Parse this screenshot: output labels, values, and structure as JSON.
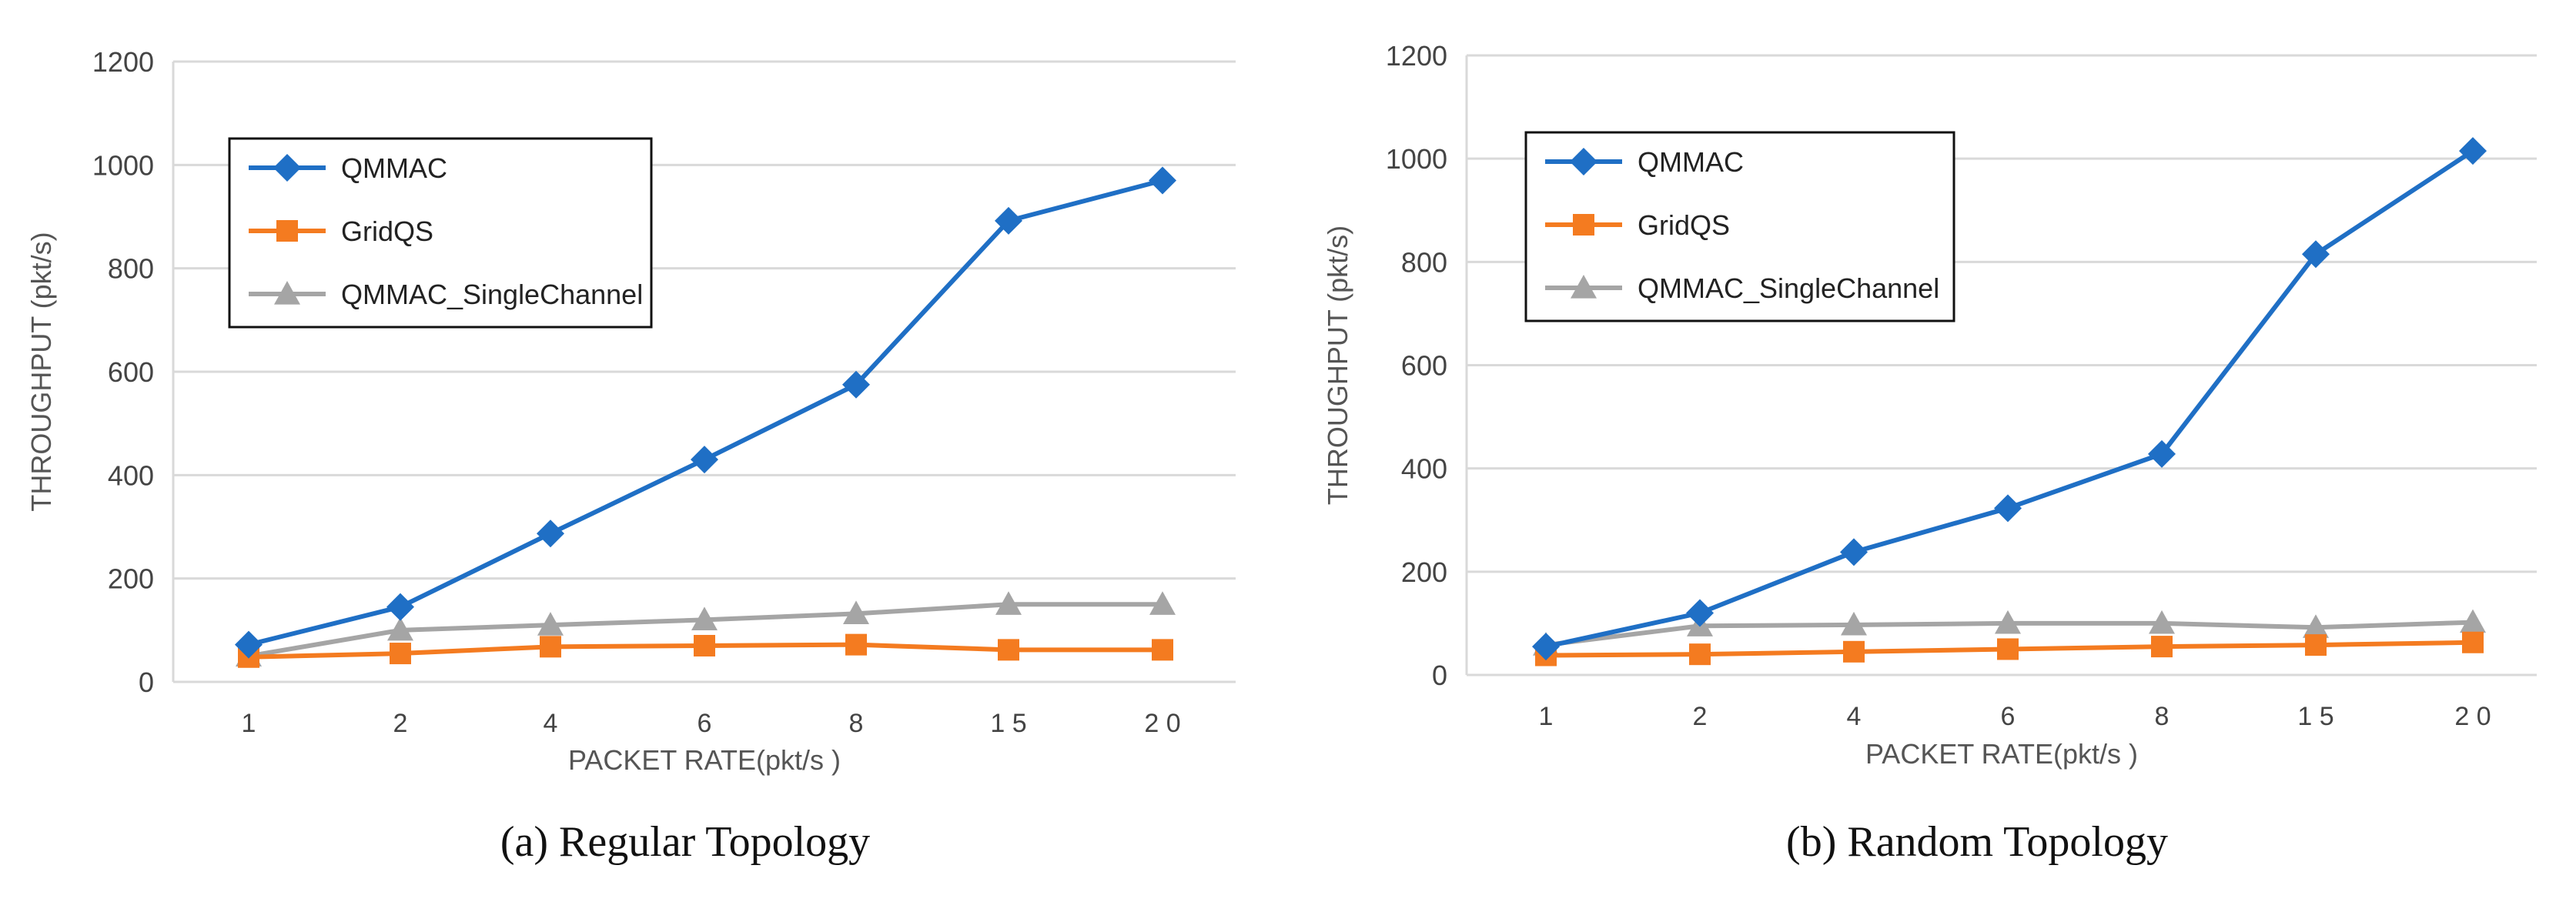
{
  "chart_data": [
    {
      "type": "line",
      "caption": "(a)  Regular Topology",
      "ylabel": "THROUGHPUT (pkt/s)",
      "xlabel": "PACKET RATE(pkt/s )",
      "categories": [
        "1",
        "2",
        "4",
        "6",
        "8",
        "1 5",
        "2 0"
      ],
      "yticks": [
        "0",
        "200",
        "400",
        "600",
        "800",
        "1000",
        "1200"
      ],
      "ylim": [
        0,
        1200
      ],
      "grid": "horizontal",
      "legend": "top-left",
      "series": [
        {
          "name": "QMMAC",
          "color": "#1f6fc5",
          "marker": "diamond",
          "values": [
            72,
            145,
            287,
            430,
            575,
            892,
            970
          ]
        },
        {
          "name": "GridQS",
          "color": "#f47b20",
          "marker": "square",
          "values": [
            48,
            55,
            68,
            70,
            72,
            62,
            62
          ]
        },
        {
          "name": "QMMAC_SingleChannel",
          "color": "#a5a5a5",
          "marker": "triangle",
          "values": [
            50,
            100,
            110,
            120,
            132,
            150,
            150
          ]
        }
      ]
    },
    {
      "type": "line",
      "caption": "(b)  Random Topology",
      "ylabel": "THROUGHPUT (pkt/s)",
      "xlabel": "PACKET RATE(pkt/s )",
      "categories": [
        "1",
        "2",
        "4",
        "6",
        "8",
        "1 5",
        "2 0"
      ],
      "yticks": [
        "0",
        "200",
        "400",
        "600",
        "800",
        "1000",
        "1200"
      ],
      "ylim": [
        0,
        1200
      ],
      "grid": "horizontal",
      "legend": "top-left",
      "series": [
        {
          "name": "QMMAC",
          "color": "#1f6fc5",
          "marker": "diamond",
          "values": [
            55,
            120,
            238,
            323,
            428,
            815,
            1015
          ]
        },
        {
          "name": "GridQS",
          "color": "#f47b20",
          "marker": "square",
          "values": [
            38,
            40,
            45,
            50,
            55,
            58,
            63
          ]
        },
        {
          "name": "QMMAC_SingleChannel",
          "color": "#a5a5a5",
          "marker": "triangle",
          "values": [
            58,
            95,
            97,
            100,
            100,
            92,
            102
          ]
        }
      ]
    }
  ]
}
